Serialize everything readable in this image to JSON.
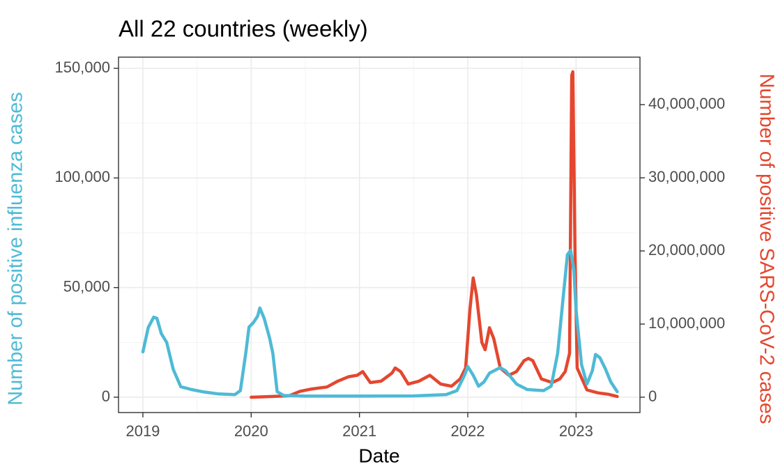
{
  "chart_data": {
    "type": "line",
    "title": "All 22 countries (weekly)",
    "x_label": "Date",
    "y_label": "Number of positive influenza cases",
    "y2_label": "Number of positive SARS-CoV-2 cases",
    "y_label_color": "#4ebad6",
    "y2_label_color": "#e4472f",
    "xlim": [
      2018.775,
      2023.59
    ],
    "xticks": [
      2019,
      2020,
      2021,
      2022,
      2023
    ],
    "ylim": [
      -7000,
      155100
    ],
    "yticks": [
      0,
      {
        "value": 50000,
        "label": "50,000"
      },
      {
        "value": 100000,
        "label": "100,000"
      },
      {
        "value": 150000,
        "label": "150,000"
      }
    ],
    "y2lim": [
      -2100000,
      46500000
    ],
    "y2ticks": [
      0,
      {
        "value": 10000000,
        "label": "10,000,000"
      },
      {
        "value": 20000000,
        "label": "20,000,000"
      },
      {
        "value": 30000000,
        "label": "30,000,000"
      },
      {
        "value": 40000000,
        "label": "40,000,000"
      }
    ],
    "grid": true,
    "series": [
      {
        "color": "#e4472f",
        "axis": "y2",
        "x": [
          2020.0,
          2020.2,
          2020.35,
          2020.45,
          2020.55,
          2020.7,
          2020.8,
          2020.9,
          2020.98,
          2021.03,
          2021.1,
          2021.2,
          2021.3,
          2021.33,
          2021.38,
          2021.45,
          2021.55,
          2021.65,
          2021.75,
          2021.85,
          2021.93,
          2021.98,
          2022.02,
          2022.05,
          2022.08,
          2022.13,
          2022.16,
          2022.2,
          2022.24,
          2022.3,
          2022.38,
          2022.45,
          2022.52,
          2022.56,
          2022.6,
          2022.68,
          2022.78,
          2022.85,
          2022.9,
          2022.94,
          2022.96,
          2022.97,
          2022.99,
          2023.01,
          2023.1,
          2023.2,
          2023.3,
          2023.38
        ],
        "values": [
          0,
          100000,
          200000,
          800000,
          1100000,
          1400000,
          2200000,
          2800000,
          3000000,
          3500000,
          2000000,
          2200000,
          3300000,
          4000000,
          3500000,
          1800000,
          2200000,
          3000000,
          1800000,
          1500000,
          2500000,
          4000000,
          12000000,
          16300000,
          14000000,
          7500000,
          6500000,
          9500000,
          8000000,
          4000000,
          3000000,
          3500000,
          5000000,
          5300000,
          5000000,
          2500000,
          2000000,
          2500000,
          3500000,
          6000000,
          44000000,
          44500000,
          20000000,
          4000000,
          1000000,
          600000,
          400000,
          100000
        ]
      },
      {
        "color": "#4ebad6",
        "axis": "y",
        "x": [
          2019.0,
          2019.05,
          2019.1,
          2019.13,
          2019.17,
          2019.22,
          2019.28,
          2019.35,
          2019.45,
          2019.55,
          2019.7,
          2019.85,
          2019.9,
          2019.95,
          2019.98,
          2020.02,
          2020.06,
          2020.08,
          2020.12,
          2020.17,
          2020.2,
          2020.24,
          2020.3,
          2020.5,
          2021.0,
          2021.5,
          2021.8,
          2021.9,
          2021.97,
          2022.0,
          2022.05,
          2022.1,
          2022.15,
          2022.2,
          2022.3,
          2022.35,
          2022.45,
          2022.55,
          2022.7,
          2022.77,
          2022.83,
          2022.88,
          2022.92,
          2022.95,
          2022.98,
          2023.0,
          2023.05,
          2023.1,
          2023.15,
          2023.18,
          2023.22,
          2023.27,
          2023.32,
          2023.38
        ],
        "values": [
          20700,
          31800,
          36500,
          36000,
          29000,
          25000,
          12700,
          4800,
          3500,
          2500,
          1500,
          1200,
          3000,
          20000,
          32000,
          34000,
          37000,
          40700,
          36000,
          27000,
          20000,
          2500,
          800,
          500,
          500,
          600,
          1200,
          3000,
          10000,
          14000,
          10000,
          5000,
          7000,
          11000,
          13500,
          12000,
          6000,
          3500,
          3000,
          5000,
          20000,
          45000,
          65000,
          67000,
          58000,
          40000,
          15000,
          6000,
          12000,
          19500,
          18000,
          13000,
          7000,
          2500
        ]
      }
    ]
  }
}
